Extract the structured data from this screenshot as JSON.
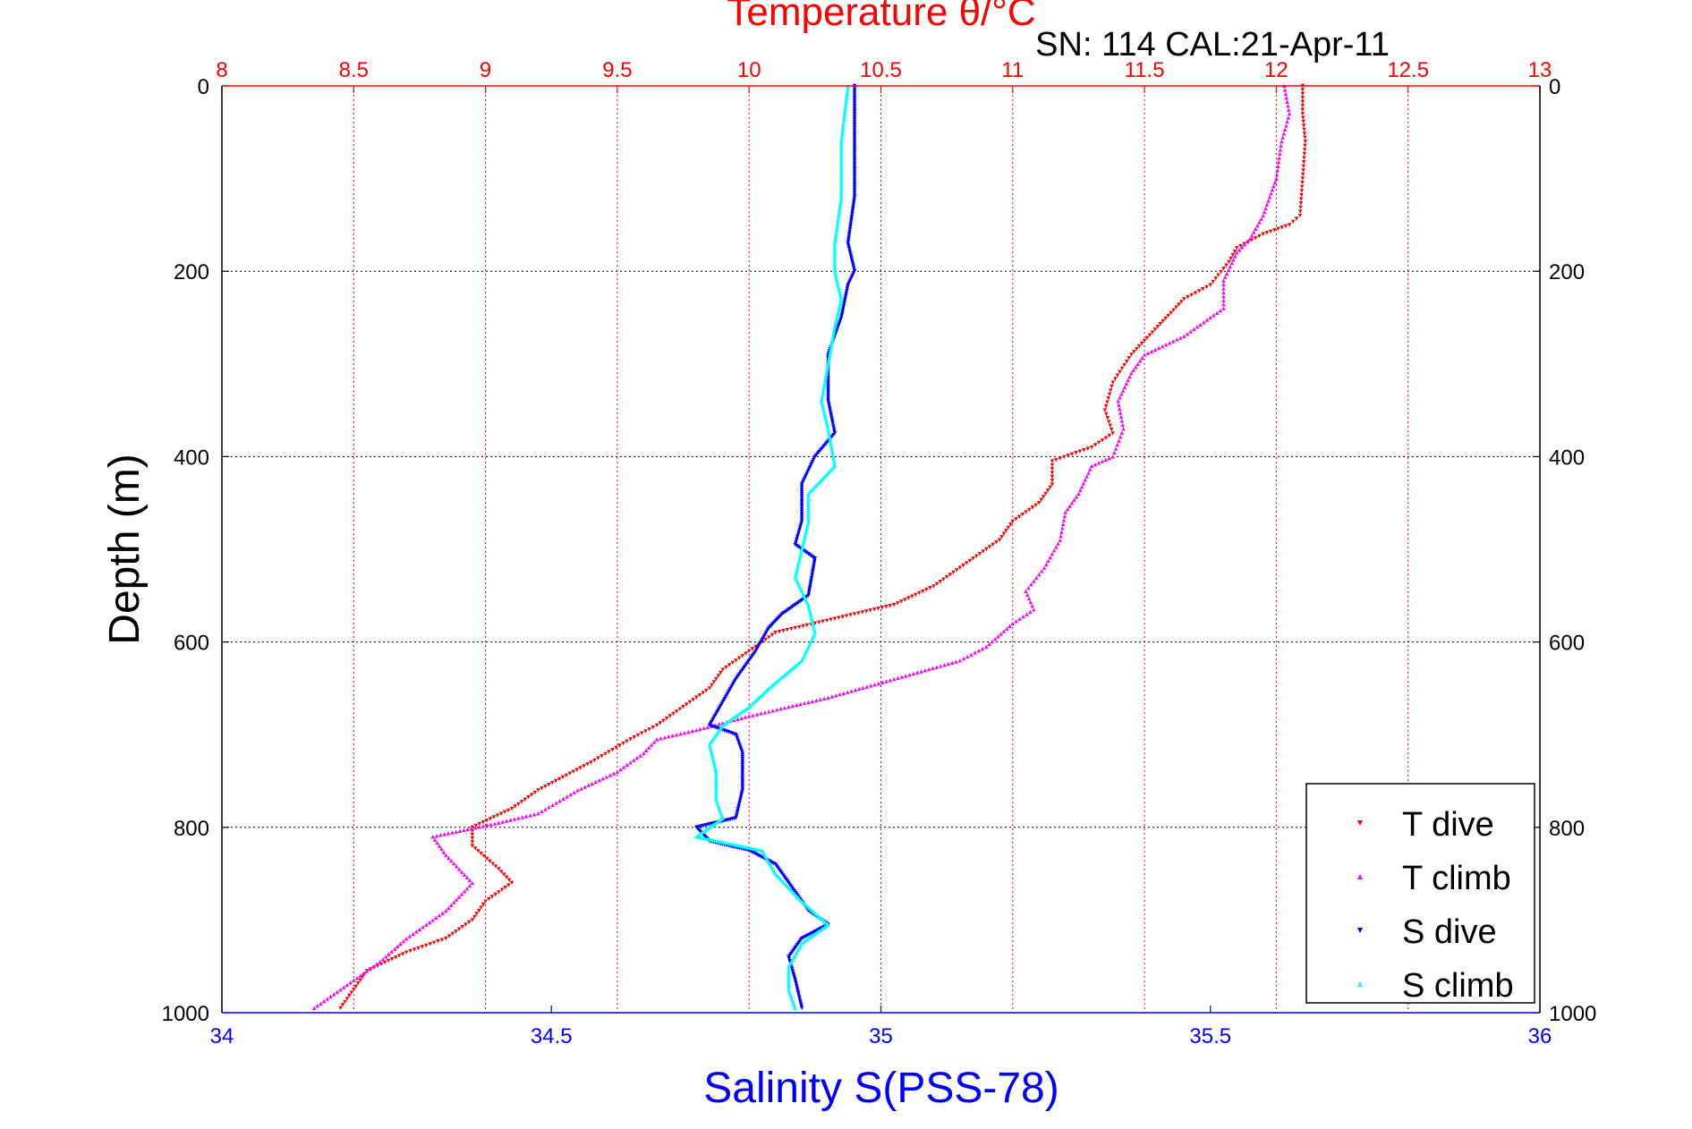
{
  "figure": {
    "top_title": "Temperature θ/°C",
    "subtitle": "SN: 114  CAL:21-Apr-11",
    "ylabel": "Depth (m)",
    "xlabel": "Salinity S(PSS-78)"
  },
  "colors": {
    "temperature_axis": "#ff0000",
    "salinity_axis": "#0000ff",
    "t_dive": "#ff0000",
    "t_climb": "#ff00ff",
    "s_dive": "#0000ff",
    "s_climb": "#00ffff",
    "grid": "#000000"
  },
  "chart_data": {
    "type": "scatter",
    "title": "Temperature θ/°C",
    "subtitle": "SN: 114  CAL:21-Apr-11",
    "xlabel": "Salinity S(PSS-78)",
    "ylabel": "Depth (m)",
    "x_bottom": {
      "label": "Salinity S(PSS-78)",
      "lim": [
        34,
        36
      ],
      "ticks": [
        34,
        34.5,
        35,
        35.5,
        36
      ],
      "tick_labels": [
        "34",
        "34.5",
        "35",
        "35.5",
        "36"
      ]
    },
    "x_top": {
      "label": "Temperature θ/°C",
      "lim": [
        8,
        13
      ],
      "ticks": [
        8,
        8.5,
        9,
        9.5,
        10,
        10.5,
        11,
        11.5,
        12,
        12.5,
        13
      ],
      "tick_labels": [
        "8",
        "8.5",
        "9",
        "9.5",
        "10",
        "10.5",
        "11",
        "11.5",
        "12",
        "12.5",
        "13"
      ]
    },
    "y": {
      "label": "Depth (m)",
      "lim": [
        0,
        1000
      ],
      "reversed": true,
      "ticks": [
        0,
        200,
        400,
        600,
        800,
        1000
      ],
      "tick_labels": [
        "0",
        "200",
        "400",
        "600",
        "800",
        "1000"
      ]
    },
    "grid": true,
    "legend_position": "bottom-right",
    "series": [
      {
        "name": "T dive",
        "axis": "temperature",
        "marker": "down-triangle",
        "points": [
          [
            12.1,
            0
          ],
          [
            12.1,
            30
          ],
          [
            12.11,
            60
          ],
          [
            12.1,
            100
          ],
          [
            12.09,
            140
          ],
          [
            12.05,
            150
          ],
          [
            11.95,
            160
          ],
          [
            11.85,
            175
          ],
          [
            11.82,
            190
          ],
          [
            11.75,
            215
          ],
          [
            11.65,
            230
          ],
          [
            11.55,
            260
          ],
          [
            11.45,
            290
          ],
          [
            11.38,
            320
          ],
          [
            11.35,
            350
          ],
          [
            11.38,
            375
          ],
          [
            11.3,
            390
          ],
          [
            11.15,
            405
          ],
          [
            11.15,
            430
          ],
          [
            11.1,
            450
          ],
          [
            11.0,
            470
          ],
          [
            10.95,
            490
          ],
          [
            10.85,
            510
          ],
          [
            10.7,
            540
          ],
          [
            10.55,
            560
          ],
          [
            10.4,
            570
          ],
          [
            10.1,
            590
          ],
          [
            10.0,
            610
          ],
          [
            9.9,
            630
          ],
          [
            9.85,
            650
          ],
          [
            9.75,
            670
          ],
          [
            9.65,
            690
          ],
          [
            9.55,
            705
          ],
          [
            9.4,
            730
          ],
          [
            9.2,
            760
          ],
          [
            9.1,
            780
          ],
          [
            8.95,
            800
          ],
          [
            8.95,
            820
          ],
          [
            9.05,
            845
          ],
          [
            9.1,
            860
          ],
          [
            9.0,
            880
          ],
          [
            8.95,
            900
          ],
          [
            8.85,
            920
          ],
          [
            8.7,
            935
          ],
          [
            8.55,
            955
          ],
          [
            8.5,
            975
          ],
          [
            8.45,
            995
          ]
        ]
      },
      {
        "name": "T climb",
        "axis": "temperature",
        "marker": "up-triangle",
        "points": [
          [
            12.03,
            0
          ],
          [
            12.05,
            30
          ],
          [
            12.02,
            60
          ],
          [
            12.0,
            100
          ],
          [
            11.95,
            140
          ],
          [
            11.9,
            165
          ],
          [
            11.85,
            180
          ],
          [
            11.8,
            210
          ],
          [
            11.8,
            240
          ],
          [
            11.65,
            270
          ],
          [
            11.5,
            290
          ],
          [
            11.45,
            310
          ],
          [
            11.4,
            340
          ],
          [
            11.42,
            370
          ],
          [
            11.38,
            400
          ],
          [
            11.3,
            410
          ],
          [
            11.25,
            440
          ],
          [
            11.2,
            460
          ],
          [
            11.18,
            490
          ],
          [
            11.12,
            520
          ],
          [
            11.05,
            545
          ],
          [
            11.08,
            565
          ],
          [
            11.0,
            580
          ],
          [
            10.9,
            605
          ],
          [
            10.8,
            620
          ],
          [
            10.55,
            640
          ],
          [
            10.3,
            660
          ],
          [
            10.0,
            680
          ],
          [
            9.8,
            695
          ],
          [
            9.65,
            705
          ],
          [
            9.6,
            720
          ],
          [
            9.5,
            740
          ],
          [
            9.35,
            760
          ],
          [
            9.2,
            785
          ],
          [
            9.05,
            795
          ],
          [
            8.8,
            810
          ],
          [
            8.85,
            830
          ],
          [
            8.95,
            860
          ],
          [
            8.85,
            890
          ],
          [
            8.7,
            920
          ],
          [
            8.6,
            945
          ],
          [
            8.5,
            965
          ],
          [
            8.35,
            995
          ]
        ]
      },
      {
        "name": "S dive",
        "axis": "salinity",
        "marker": "down-triangle",
        "points": [
          [
            34.96,
            0
          ],
          [
            34.96,
            60
          ],
          [
            34.96,
            120
          ],
          [
            34.95,
            170
          ],
          [
            34.96,
            200
          ],
          [
            34.95,
            215
          ],
          [
            34.94,
            250
          ],
          [
            34.92,
            290
          ],
          [
            34.92,
            340
          ],
          [
            34.93,
            375
          ],
          [
            34.9,
            400
          ],
          [
            34.88,
            430
          ],
          [
            34.88,
            470
          ],
          [
            34.87,
            495
          ],
          [
            34.9,
            510
          ],
          [
            34.89,
            550
          ],
          [
            34.85,
            570
          ],
          [
            34.83,
            585
          ],
          [
            34.81,
            610
          ],
          [
            34.78,
            640
          ],
          [
            34.76,
            665
          ],
          [
            34.74,
            690
          ],
          [
            34.78,
            700
          ],
          [
            34.79,
            720
          ],
          [
            34.79,
            760
          ],
          [
            34.78,
            790
          ],
          [
            34.72,
            800
          ],
          [
            34.74,
            815
          ],
          [
            34.8,
            825
          ],
          [
            34.84,
            840
          ],
          [
            34.86,
            860
          ],
          [
            34.89,
            890
          ],
          [
            34.92,
            905
          ],
          [
            34.88,
            920
          ],
          [
            34.86,
            940
          ],
          [
            34.87,
            965
          ],
          [
            34.88,
            995
          ]
        ]
      },
      {
        "name": "S climb",
        "axis": "salinity",
        "marker": "up-triangle",
        "points": [
          [
            34.95,
            0
          ],
          [
            34.94,
            60
          ],
          [
            34.94,
            120
          ],
          [
            34.93,
            170
          ],
          [
            34.93,
            200
          ],
          [
            34.94,
            230
          ],
          [
            34.93,
            260
          ],
          [
            34.92,
            300
          ],
          [
            34.91,
            340
          ],
          [
            34.92,
            370
          ],
          [
            34.93,
            410
          ],
          [
            34.89,
            440
          ],
          [
            34.89,
            470
          ],
          [
            34.88,
            500
          ],
          [
            34.87,
            530
          ],
          [
            34.89,
            560
          ],
          [
            34.9,
            590
          ],
          [
            34.88,
            620
          ],
          [
            34.83,
            650
          ],
          [
            34.8,
            670
          ],
          [
            34.76,
            690
          ],
          [
            34.74,
            710
          ],
          [
            34.75,
            740
          ],
          [
            34.75,
            770
          ],
          [
            34.76,
            790
          ],
          [
            34.72,
            810
          ],
          [
            34.82,
            825
          ],
          [
            34.84,
            850
          ],
          [
            34.88,
            880
          ],
          [
            34.92,
            905
          ],
          [
            34.88,
            925
          ],
          [
            34.86,
            950
          ],
          [
            34.86,
            975
          ],
          [
            34.87,
            995
          ]
        ]
      }
    ]
  }
}
